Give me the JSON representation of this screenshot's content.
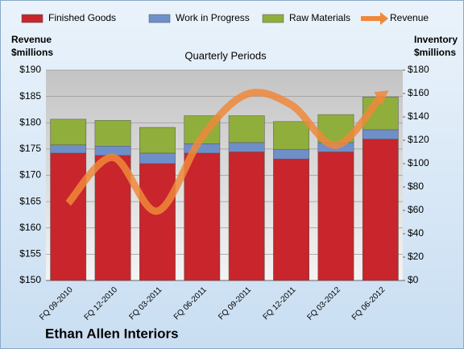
{
  "chart_data": {
    "type": "bar",
    "stacked": true,
    "title": "Quarterly Periods",
    "company": "Ethan Allen Interiors",
    "y_label": [
      "Revenue",
      "$millions"
    ],
    "y2_label": [
      "Inventory",
      "$millions"
    ],
    "categories": [
      "FQ 09-2010",
      "FQ 12-2010",
      "FQ 03-2011",
      "FQ 06-2011",
      "FQ 09-2011",
      "FQ 12-2011",
      "FQ 03-2012",
      "FQ 06-2012"
    ],
    "series": [
      {
        "name": "Finished Goods",
        "color": "#c8252c",
        "axis": "y2",
        "values": [
          109,
          107,
          100,
          109,
          110,
          104,
          110,
          121
        ]
      },
      {
        "name": "Work in Progress",
        "color": "#6f8fc9",
        "axis": "y2",
        "values": [
          7,
          8,
          9,
          8,
          8,
          8,
          8,
          8
        ]
      },
      {
        "name": "Raw Materials",
        "color": "#8fae3c",
        "axis": "y2",
        "values": [
          22,
          22,
          22,
          24,
          23,
          24,
          24,
          28
        ]
      },
      {
        "name": "Revenue",
        "color": "#f0883a",
        "type": "line",
        "values": [
          164.7,
          173.4,
          163.2,
          177.3,
          185.4,
          183.4,
          175.7,
          184.9
        ]
      }
    ],
    "ylim": [
      150,
      190
    ],
    "yticks": [
      {
        "value": 150,
        "label": "$150"
      },
      {
        "value": 155,
        "label": "$155"
      },
      {
        "value": 160,
        "label": "$160"
      },
      {
        "value": 165,
        "label": "$165"
      },
      {
        "value": 170,
        "label": "$170"
      },
      {
        "value": 175,
        "label": "$175"
      },
      {
        "value": 180,
        "label": "$180"
      },
      {
        "value": 185,
        "label": "$185"
      },
      {
        "value": 190,
        "label": "$190"
      }
    ],
    "y2lim": [
      0,
      180
    ],
    "y2ticks": [
      {
        "value": 0,
        "label": "$0"
      },
      {
        "value": 20,
        "label": "$20"
      },
      {
        "value": 40,
        "label": "$40"
      },
      {
        "value": 60,
        "label": "$60"
      },
      {
        "value": 80,
        "label": "$80"
      },
      {
        "value": 100,
        "label": "$100"
      },
      {
        "value": 120,
        "label": "$120"
      },
      {
        "value": 140,
        "label": "$140"
      },
      {
        "value": 160,
        "label": "$160"
      },
      {
        "value": 180,
        "label": "$180"
      }
    ],
    "grid": true,
    "legend": "top"
  }
}
